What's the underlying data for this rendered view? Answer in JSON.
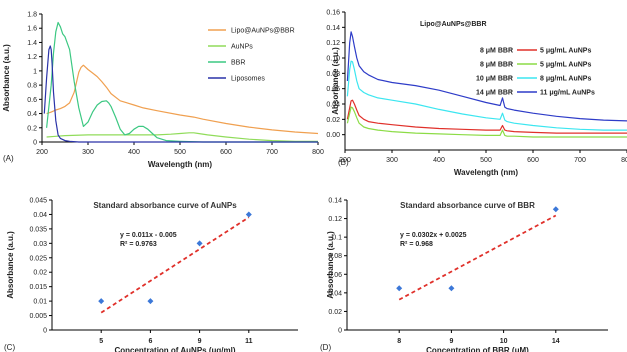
{
  "chart_data": [
    {
      "panel": "(A)",
      "type": "line",
      "xlabel": "Wavelength (nm)",
      "ylabel": "Absorbance (a.u.)",
      "xlim": [
        200,
        800
      ],
      "ylim": [
        0,
        1.8
      ],
      "xticks": [
        200,
        300,
        400,
        500,
        600,
        700,
        800
      ],
      "yticks": [
        0,
        0.2,
        0.4,
        0.6,
        0.8,
        1,
        1.2,
        1.4,
        1.6,
        1.8
      ],
      "legend": "top-right",
      "series": [
        {
          "name": "Lipo@AuNPs@BBR",
          "color": "#f0a050",
          "x": [
            210,
            220,
            230,
            240,
            250,
            260,
            270,
            280,
            285,
            290,
            300,
            310,
            320,
            330,
            340,
            350,
            370,
            400,
            420,
            450,
            500,
            530,
            550,
            600,
            650,
            700,
            750,
            800
          ],
          "y": [
            0.4,
            0.42,
            0.45,
            0.47,
            0.5,
            0.55,
            0.7,
            0.98,
            1.05,
            1.08,
            1.02,
            0.97,
            0.92,
            0.85,
            0.77,
            0.68,
            0.58,
            0.52,
            0.48,
            0.44,
            0.38,
            0.35,
            0.32,
            0.26,
            0.21,
            0.17,
            0.14,
            0.12
          ]
        },
        {
          "name": "AuNPs",
          "color": "#90dc5a",
          "x": [
            210,
            230,
            250,
            300,
            350,
            400,
            450,
            480,
            500,
            520,
            530,
            540,
            560,
            600,
            650,
            700,
            750,
            800
          ],
          "y": [
            0.07,
            0.08,
            0.09,
            0.1,
            0.1,
            0.1,
            0.1,
            0.11,
            0.12,
            0.13,
            0.13,
            0.12,
            0.1,
            0.07,
            0.04,
            0.02,
            0.01,
            0.01
          ]
        },
        {
          "name": "BBR",
          "color": "#3cc882",
          "x": [
            210,
            220,
            225,
            230,
            235,
            240,
            245,
            250,
            260,
            270,
            280,
            290,
            300,
            310,
            320,
            330,
            340,
            345,
            350,
            360,
            370,
            380,
            390,
            400,
            410,
            420,
            430,
            440,
            450,
            470,
            500,
            550,
            600,
            700,
            800
          ],
          "y": [
            0.2,
            0.8,
            1.25,
            1.55,
            1.68,
            1.62,
            1.52,
            1.48,
            1.3,
            0.85,
            0.48,
            0.22,
            0.28,
            0.42,
            0.52,
            0.57,
            0.58,
            0.55,
            0.5,
            0.35,
            0.18,
            0.1,
            0.12,
            0.18,
            0.22,
            0.22,
            0.18,
            0.12,
            0.06,
            0.02,
            0.01,
            0.0,
            0.0,
            0.0,
            0.0
          ]
        },
        {
          "name": "Liposomes",
          "color": "#2a32a8",
          "x": [
            205,
            210,
            215,
            218,
            220,
            222,
            225,
            230,
            235,
            240,
            250,
            260,
            280,
            300,
            400,
            500,
            600,
            700,
            800
          ],
          "y": [
            0.4,
            0.9,
            1.3,
            1.35,
            1.3,
            1.1,
            0.7,
            0.3,
            0.1,
            0.05,
            0.02,
            0.01,
            0.0,
            0.0,
            0.0,
            0.0,
            0.0,
            0.0,
            0.0
          ]
        }
      ]
    },
    {
      "panel": "(B)",
      "type": "line",
      "title": "Lipo@AuNPs@BBR",
      "xlabel": "Wavelength (nm)",
      "ylabel": "Absorbance (a.u.)",
      "xlim": [
        200,
        800
      ],
      "ylim": [
        -0.02,
        0.16
      ],
      "xticks": [
        200,
        300,
        400,
        500,
        600,
        700,
        800
      ],
      "yticks": [
        0.0,
        0.02,
        0.04,
        0.06,
        0.08,
        0.1,
        0.12,
        0.14,
        0.16
      ],
      "legend": "top-right",
      "series": [
        {
          "name": "5 μg/mL AuNPs",
          "bbr_label": "8 μM BBR",
          "color": "#e0302a",
          "x": [
            205,
            210,
            213,
            216,
            220,
            225,
            230,
            240,
            250,
            270,
            300,
            350,
            400,
            450,
            500,
            530,
            535,
            540,
            545,
            560,
            600,
            650,
            700,
            750,
            800
          ],
          "y": [
            0.02,
            0.035,
            0.044,
            0.045,
            0.04,
            0.032,
            0.025,
            0.02,
            0.017,
            0.015,
            0.013,
            0.01,
            0.008,
            0.007,
            0.006,
            0.006,
            0.012,
            0.006,
            0.005,
            0.004,
            0.003,
            0.002,
            0.002,
            0.002,
            0.002
          ]
        },
        {
          "name": "5 μg/mL AuNPs",
          "bbr_label": "8 μM BBR",
          "color": "#8cdc46",
          "x": [
            205,
            210,
            213,
            216,
            220,
            225,
            230,
            240,
            250,
            270,
            300,
            350,
            400,
            450,
            500,
            530,
            535,
            540,
            545,
            560,
            600,
            650,
            700,
            750,
            800
          ],
          "y": [
            0.015,
            0.028,
            0.036,
            0.035,
            0.03,
            0.022,
            0.015,
            0.01,
            0.008,
            0.006,
            0.004,
            0.002,
            0.001,
            0.0,
            -0.001,
            -0.001,
            0.006,
            -0.001,
            -0.002,
            -0.002,
            -0.003,
            -0.003,
            -0.003,
            -0.003,
            -0.003
          ]
        },
        {
          "name": "8 μg/mL AuNPs",
          "bbr_label": "10 μM BBR",
          "color": "#3ce6f0",
          "x": [
            205,
            210,
            213,
            216,
            220,
            225,
            230,
            240,
            250,
            270,
            300,
            350,
            400,
            450,
            500,
            530,
            535,
            540,
            545,
            560,
            600,
            650,
            700,
            750,
            800
          ],
          "y": [
            0.05,
            0.085,
            0.096,
            0.095,
            0.085,
            0.07,
            0.06,
            0.055,
            0.052,
            0.048,
            0.045,
            0.04,
            0.033,
            0.027,
            0.022,
            0.02,
            0.028,
            0.019,
            0.017,
            0.015,
            0.012,
            0.009,
            0.007,
            0.006,
            0.006
          ]
        },
        {
          "name": "11 μg/mL AuNPs",
          "bbr_label": "14 μM BBR",
          "color": "#2e3cc8",
          "x": [
            205,
            210,
            213,
            216,
            220,
            225,
            230,
            240,
            250,
            270,
            300,
            350,
            400,
            450,
            500,
            530,
            535,
            540,
            545,
            560,
            600,
            650,
            700,
            750,
            800
          ],
          "y": [
            0.07,
            0.12,
            0.134,
            0.128,
            0.115,
            0.1,
            0.09,
            0.082,
            0.078,
            0.072,
            0.068,
            0.064,
            0.058,
            0.05,
            0.042,
            0.038,
            0.048,
            0.036,
            0.034,
            0.032,
            0.028,
            0.024,
            0.021,
            0.019,
            0.018
          ]
        }
      ]
    },
    {
      "panel": "(C)",
      "type": "scatter",
      "title": "Standard absorbance curve of AuNPs",
      "xlabel": "Concentration of AuNPs (μg/ml)",
      "ylabel": "Absorbance (a.u.)",
      "categories": [
        "5",
        "6",
        "9",
        "11"
      ],
      "ylim": [
        0,
        0.045
      ],
      "yticks": [
        0,
        0.005,
        0.01,
        0.015,
        0.02,
        0.025,
        0.03,
        0.035,
        0.04,
        0.045
      ],
      "values": [
        0.01,
        0.01,
        0.03,
        0.04
      ],
      "trendline": {
        "slope": 0.011,
        "intercept": -0.005,
        "equation": "y = 0.011x - 0.005",
        "r2": "R² = 0.9763",
        "color": "#e0302a"
      },
      "marker_color": "#3c78d8"
    },
    {
      "panel": "(D)",
      "type": "scatter",
      "title": "Standard absorbance curve of BBR",
      "xlabel": "Concentration of BBR (μM)",
      "ylabel": "Absorbance (a.u.)",
      "categories": [
        "8",
        "9",
        "10",
        "14"
      ],
      "ylim": [
        0,
        0.14
      ],
      "yticks": [
        0,
        0.02,
        0.04,
        0.06,
        0.08,
        0.1,
        0.12,
        0.14
      ],
      "values": [
        0.045,
        0.045,
        null,
        0.13
      ],
      "trendline": {
        "slope": 0.0302,
        "intercept": 0.0025,
        "equation": "y = 0.0302x + 0.0025",
        "r2": "R² = 0.968",
        "color": "#e0302a"
      },
      "marker_color": "#3c78d8"
    }
  ]
}
